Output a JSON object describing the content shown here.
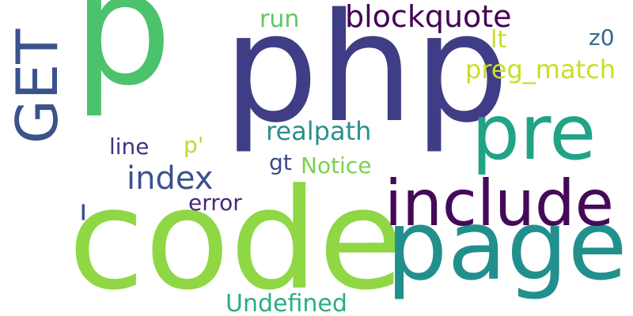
{
  "words": {
    "p": "p",
    "php": "php",
    "code": "code",
    "page": "page",
    "include": "include",
    "pre": "pre",
    "blockquote": "blockquote",
    "preg_match": "preg_match",
    "realpath": "realpath",
    "index": "index",
    "run": "run",
    "lt": "lt",
    "z0": "z0",
    "line": "line",
    "p_quote": "p'",
    "gt": "gt",
    "notice": "Notice",
    "error": "error",
    "undefined": "Undefined",
    "get": "GET",
    "dash": "–"
  },
  "colors": {
    "p": "#4cc26c",
    "php": "#3f3d86",
    "code": "#8fd744",
    "page": "#21908d",
    "include": "#440a59",
    "pre": "#21a386",
    "blockquote": "#440154",
    "preg_match": "#c8e020",
    "realpath": "#2a8f8d",
    "index": "#3b528b",
    "run": "#5ec962",
    "lt": "#c5df1f",
    "z0": "#31688e",
    "line": "#46327e",
    "p_quote": "#b5de2b",
    "gt": "#3e4a89",
    "notice": "#7ad151",
    "error": "#482878",
    "undefined": "#28ae80",
    "get": "#3b528b",
    "dash": "#3b528b"
  }
}
